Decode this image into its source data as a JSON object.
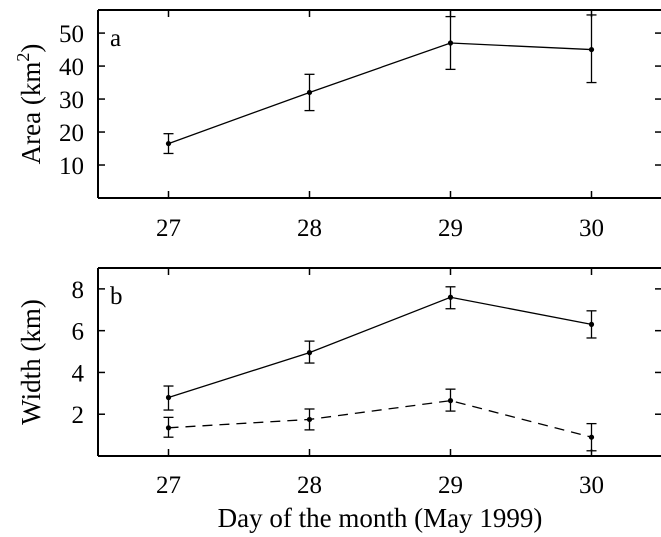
{
  "chart_data": [
    {
      "panel_label": "a",
      "type": "line",
      "xlabel": "",
      "ylabel": "Area (km",
      "ylabel_superscript": "2",
      "ylabel_close": ")",
      "xlim": [
        26.5,
        30.5
      ],
      "ylim": [
        0,
        57
      ],
      "xticks": [
        27,
        28,
        29,
        30
      ],
      "yticks": [
        10,
        20,
        30,
        40,
        50
      ],
      "xticks_on_axis_labels": [
        "27",
        "28",
        "29",
        "30"
      ],
      "series": [
        {
          "style": "solid",
          "x": [
            27,
            28,
            29,
            30
          ],
          "y": [
            16.5,
            32,
            47,
            45
          ],
          "err_low": [
            13.5,
            26.5,
            39,
            35
          ],
          "err_high": [
            19.5,
            37.5,
            55,
            55.5
          ]
        }
      ]
    },
    {
      "panel_label": "b",
      "type": "line",
      "xlabel": "Day of the month (May 1999)",
      "ylabel": "Width (km)",
      "xlim": [
        26.5,
        30.5
      ],
      "ylim": [
        0,
        9
      ],
      "xticks": [
        27,
        28,
        29,
        30
      ],
      "yticks": [
        2,
        4,
        6,
        8
      ],
      "series": [
        {
          "style": "solid",
          "x": [
            27,
            28,
            29,
            30
          ],
          "y": [
            2.8,
            4.95,
            7.6,
            6.3
          ],
          "err_low": [
            2.2,
            4.45,
            7.05,
            5.65
          ],
          "err_high": [
            3.35,
            5.5,
            8.1,
            6.95
          ]
        },
        {
          "style": "dashed",
          "x": [
            27,
            28,
            29,
            30
          ],
          "y": [
            1.35,
            1.75,
            2.65,
            0.9
          ],
          "err_low": [
            0.9,
            1.25,
            2.15,
            0.25
          ],
          "err_high": [
            1.85,
            2.25,
            3.2,
            1.55
          ]
        }
      ]
    }
  ]
}
